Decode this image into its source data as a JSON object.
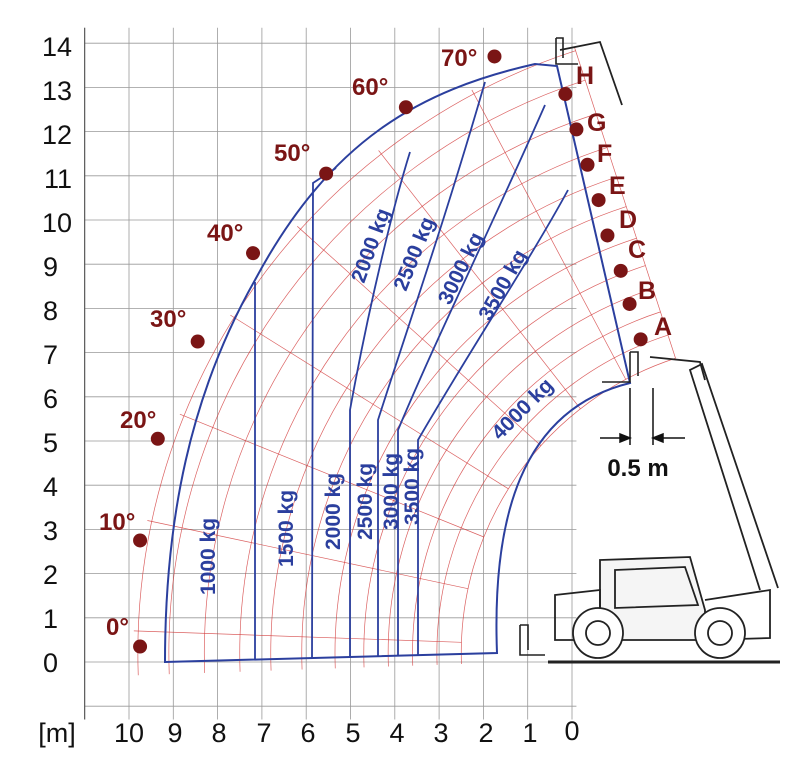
{
  "colors": {
    "grid": "#999999",
    "arc": "#d23a3a",
    "boundary": "#2b3f9e",
    "label": "#7a1515",
    "text": "#111111"
  },
  "axes": {
    "unit_label": "[m]",
    "x_ticks": [
      "10",
      "9",
      "8",
      "7",
      "6",
      "5",
      "4",
      "3",
      "2",
      "1",
      "0"
    ],
    "y_ticks": [
      "0",
      "1",
      "2",
      "3",
      "4",
      "5",
      "6",
      "7",
      "8",
      "9",
      "10",
      "11",
      "12",
      "13",
      "14"
    ]
  },
  "angles": [
    {
      "label": "0°",
      "x": 9.75,
      "y": 0.35
    },
    {
      "label": "10°",
      "x": 9.75,
      "y": 2.75
    },
    {
      "label": "20°",
      "x": 9.35,
      "y": 5.05
    },
    {
      "label": "30°",
      "x": 8.45,
      "y": 7.25
    },
    {
      "label": "40°",
      "x": 7.2,
      "y": 9.25
    },
    {
      "label": "50°",
      "x": 5.55,
      "y": 11.05
    },
    {
      "label": "60°",
      "x": 3.75,
      "y": 12.55
    },
    {
      "label": "70°",
      "x": 1.75,
      "y": 13.7
    }
  ],
  "extensions": [
    {
      "label": "A",
      "x": -1.55,
      "y": 7.3
    },
    {
      "label": "B",
      "x": -1.3,
      "y": 8.1
    },
    {
      "label": "C",
      "x": -1.1,
      "y": 8.85
    },
    {
      "label": "D",
      "x": -0.8,
      "y": 9.65
    },
    {
      "label": "E",
      "x": -0.6,
      "y": 10.45
    },
    {
      "label": "F",
      "x": -0.35,
      "y": 11.25
    },
    {
      "label": "G",
      "x": -0.1,
      "y": 12.05
    },
    {
      "label": "H",
      "x": 0.15,
      "y": 12.85
    }
  ],
  "load_zones": [
    "1000 kg",
    "1500 kg",
    "2000 kg",
    "2500 kg",
    "3000 kg",
    "3500 kg",
    "2000 kg",
    "2500 kg",
    "3000 kg",
    "3500 kg",
    "4000 kg"
  ],
  "dimension": "0.5 m"
}
